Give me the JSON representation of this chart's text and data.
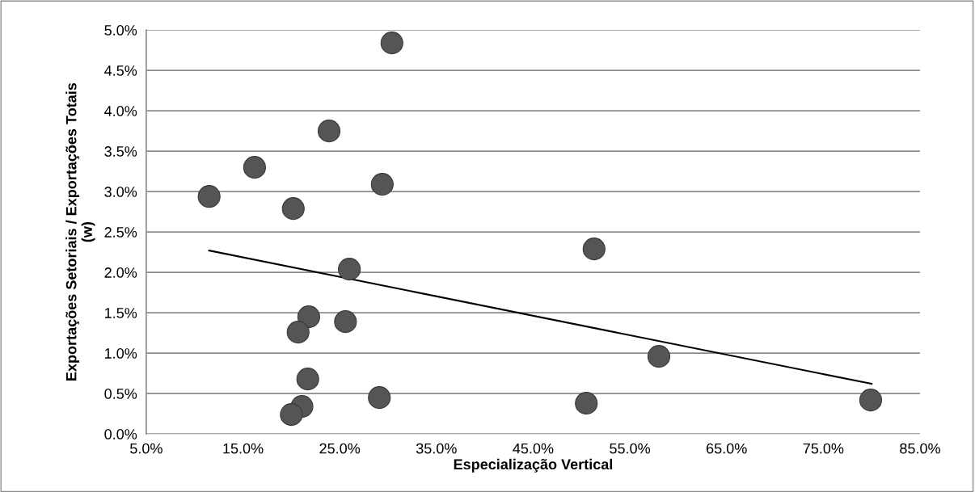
{
  "chart_data": {
    "type": "scatter",
    "xlabel": "Especialização Vertical",
    "ylabel": "Exportações Setoriais / Exportações Totais\n(w)",
    "xlim": [
      5,
      85
    ],
    "ylim": [
      0,
      5
    ],
    "xticks": [
      {
        "value": 5,
        "label": "5.0%"
      },
      {
        "value": 15,
        "label": "15.0%"
      },
      {
        "value": 25,
        "label": "25.0%"
      },
      {
        "value": 35,
        "label": "35.0%"
      },
      {
        "value": 45,
        "label": "45.0%"
      },
      {
        "value": 55,
        "label": "55.0%"
      },
      {
        "value": 65,
        "label": "65.0%"
      },
      {
        "value": 75,
        "label": "75.0%"
      },
      {
        "value": 85,
        "label": "85.0%"
      }
    ],
    "yticks": [
      {
        "value": 0,
        "label": "0.0%"
      },
      {
        "value": 0.5,
        "label": "0.5%"
      },
      {
        "value": 1,
        "label": "1.0%"
      },
      {
        "value": 1.5,
        "label": "1.5%"
      },
      {
        "value": 2,
        "label": "2.0%"
      },
      {
        "value": 2.5,
        "label": "2.5%"
      },
      {
        "value": 3,
        "label": "3.0%"
      },
      {
        "value": 3.5,
        "label": "3.5%"
      },
      {
        "value": 4,
        "label": "4.0%"
      },
      {
        "value": 4.5,
        "label": "4.5%"
      },
      {
        "value": 5,
        "label": "5.0%"
      }
    ],
    "grid": "y",
    "series": [
      {
        "marker": "circle",
        "color": "#555555",
        "x": [
          30.4,
          23.9,
          16.2,
          11.5,
          20.2,
          29.4,
          26.0,
          21.8,
          25.6,
          20.7,
          21.7,
          29.1,
          21.1,
          20.0,
          51.3,
          58.0,
          50.5,
          79.9
        ],
        "values": [
          4.84,
          3.75,
          3.3,
          2.94,
          2.79,
          3.09,
          2.04,
          1.45,
          1.39,
          1.26,
          0.68,
          0.45,
          0.34,
          0.24,
          2.29,
          0.96,
          0.38,
          0.42
        ]
      },
      {
        "type": "line",
        "color": "#000000",
        "x": [
          11.5,
          80.0
        ],
        "values": [
          2.27,
          0.62
        ]
      }
    ]
  }
}
